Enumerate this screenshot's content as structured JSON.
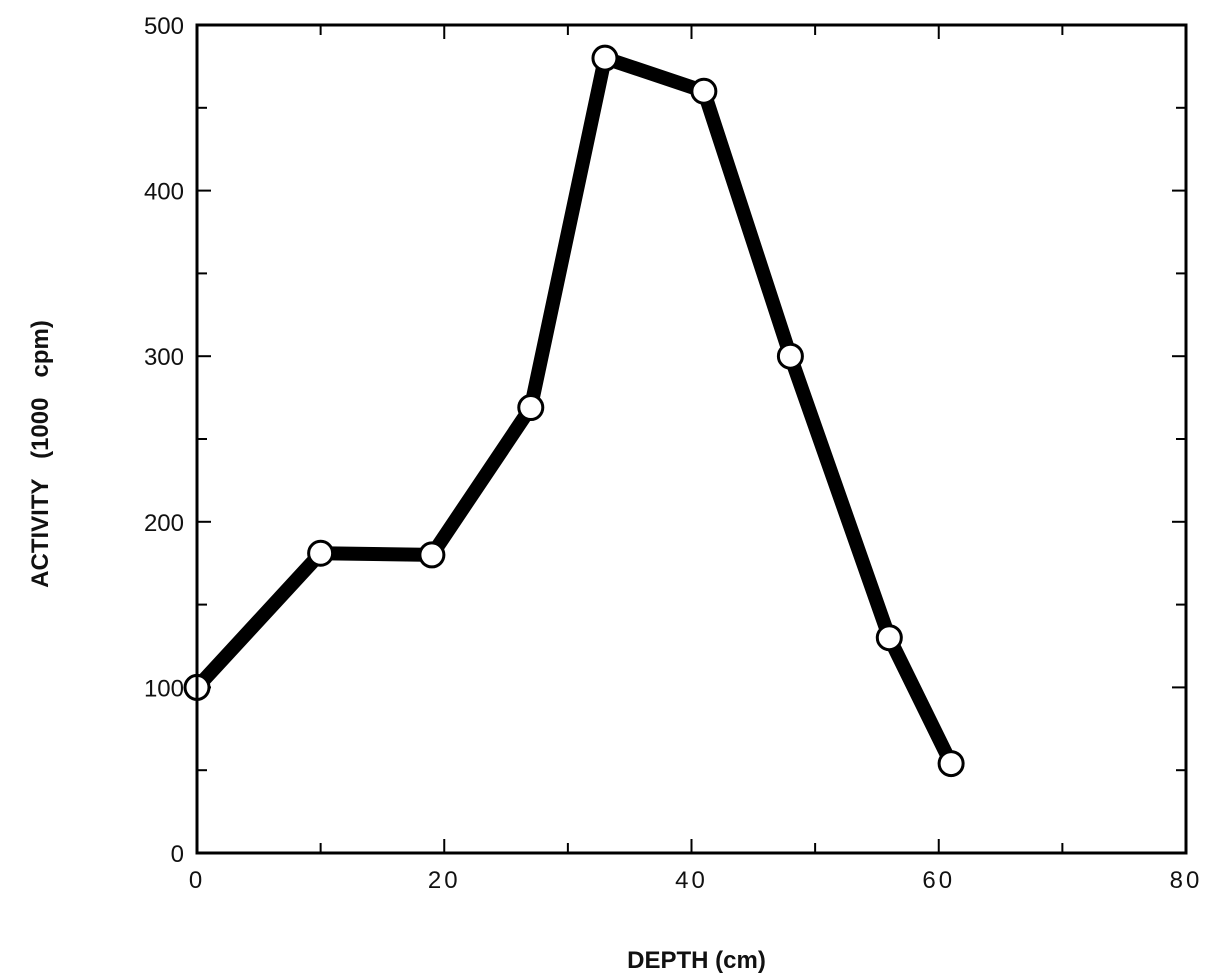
{
  "chart_data": {
    "type": "line",
    "title": "",
    "xlabel": "DEPTH (cm)",
    "ylabel": "ACTIVITY   (1000   cpm)",
    "xlim": [
      0,
      80
    ],
    "ylim": [
      0,
      500
    ],
    "x_ticks": [
      0,
      20,
      40,
      60,
      80
    ],
    "x_tick_labels": [
      "0",
      "20",
      "40",
      "60",
      "80"
    ],
    "x_minor_ticks": [
      10,
      30,
      50,
      70
    ],
    "y_ticks": [
      0,
      100,
      200,
      300,
      400,
      500
    ],
    "y_tick_labels": [
      "0",
      "100",
      "200",
      "300",
      "400",
      "500"
    ],
    "y_minor_ticks": [
      50,
      150,
      250,
      350,
      450
    ],
    "grid": false,
    "line_color": "#000000",
    "marker": "open-circle",
    "series": [
      {
        "x": [
          0,
          10,
          19,
          27,
          33,
          41,
          48,
          56,
          61
        ],
        "y": [
          100,
          181,
          180,
          269,
          480,
          460,
          300,
          130,
          54
        ]
      }
    ]
  }
}
